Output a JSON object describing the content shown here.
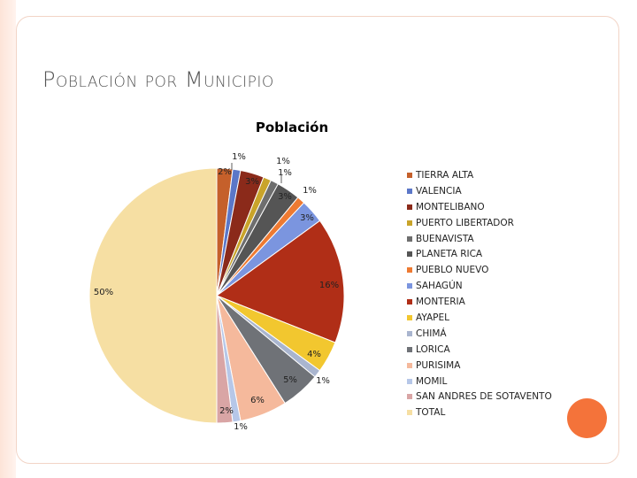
{
  "slide": {
    "title": "Población por Municipio"
  },
  "chart_data": {
    "type": "pie",
    "title": "Población",
    "start_angle_deg": 0,
    "direction": "clockwise",
    "slices": [
      {
        "name": "TIERRA ALTA",
        "value": 2,
        "label": "2%",
        "color": "#c5602b"
      },
      {
        "name": "VALENCIA",
        "value": 1,
        "label": "1%",
        "color": "#5b77c8"
      },
      {
        "name": "MONTELIBANO",
        "value": 3,
        "label": "3%",
        "color": "#8b2a1a"
      },
      {
        "name": "PUERTO LIBERTADOR",
        "value": 1,
        "label": "1%",
        "color": "#c9a42a"
      },
      {
        "name": "BUENAVISTA",
        "value": 1,
        "label": "1%",
        "color": "#6e6e6e"
      },
      {
        "name": "PLANETA RICA",
        "value": 3,
        "label": "3%",
        "color": "#555555"
      },
      {
        "name": "PUEBLO NUEVO",
        "value": 1,
        "label": "1%",
        "color": "#ee7a32"
      },
      {
        "name": "SAHAGÚN",
        "value": 3,
        "label": "3%",
        "color": "#7b95df"
      },
      {
        "name": "MONTERIA",
        "value": 16,
        "label": "16%",
        "color": "#b02e17"
      },
      {
        "name": "AYAPEL",
        "value": 4,
        "label": "4%",
        "color": "#f2c72f"
      },
      {
        "name": "CHIMÁ",
        "value": 1,
        "label": "1%",
        "color": "#a9b5cf"
      },
      {
        "name": "LORICA",
        "value": 5,
        "label": "5%",
        "color": "#6f7277"
      },
      {
        "name": "PURISIMA",
        "value": 6,
        "label": "6%",
        "color": "#f5b99c"
      },
      {
        "name": "MOMIL",
        "value": 1,
        "label": "1%",
        "color": "#b6c7e8"
      },
      {
        "name": "SAN ANDRES DE SOTAVENTO",
        "value": 2,
        "label": "2%",
        "color": "#d9a5a5"
      },
      {
        "name": "TOTAL",
        "value": 50,
        "label": "50%",
        "color": "#f6dfa3"
      }
    ],
    "legend_position": "right"
  }
}
